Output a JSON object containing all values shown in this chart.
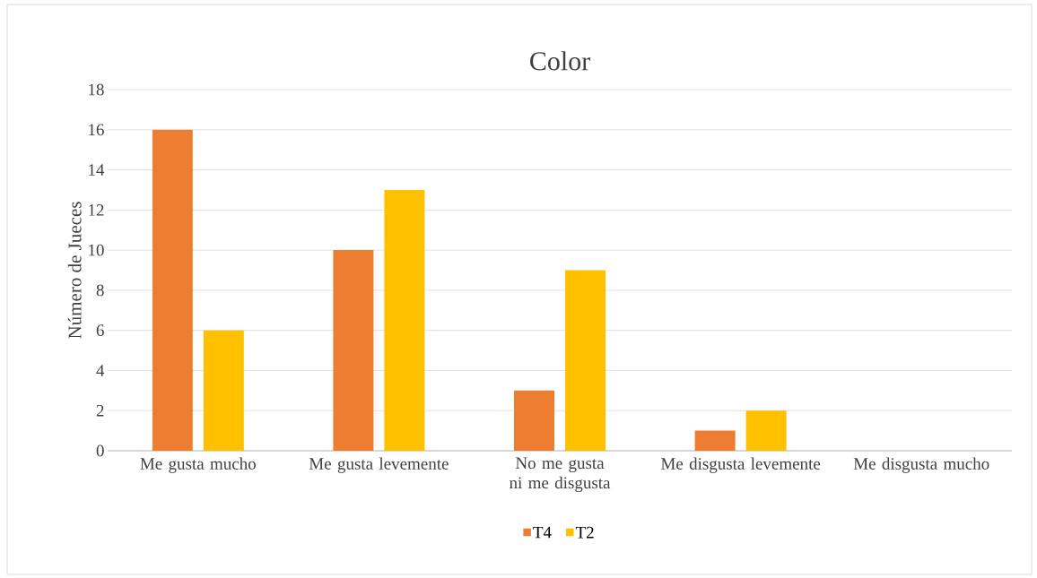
{
  "chart_data": {
    "type": "bar",
    "title": "Color",
    "ylabel": "Número de Jueces",
    "categories": [
      "Me gusta mucho",
      "Me gusta levemente",
      "No me gusta ni me disgusta",
      "Me disgusta levemente",
      "Me disgusta mucho"
    ],
    "series": [
      {
        "name": "T4",
        "color": "#ed7d31",
        "values": [
          16,
          10,
          3,
          1,
          0
        ]
      },
      {
        "name": "T2",
        "color": "#ffc000",
        "values": [
          6,
          13,
          9,
          2,
          0
        ]
      }
    ],
    "ylim": [
      0,
      18
    ],
    "yticks": [
      0,
      2,
      4,
      6,
      8,
      10,
      12,
      14,
      16,
      18
    ],
    "grid": "y",
    "legend": "bottom"
  }
}
